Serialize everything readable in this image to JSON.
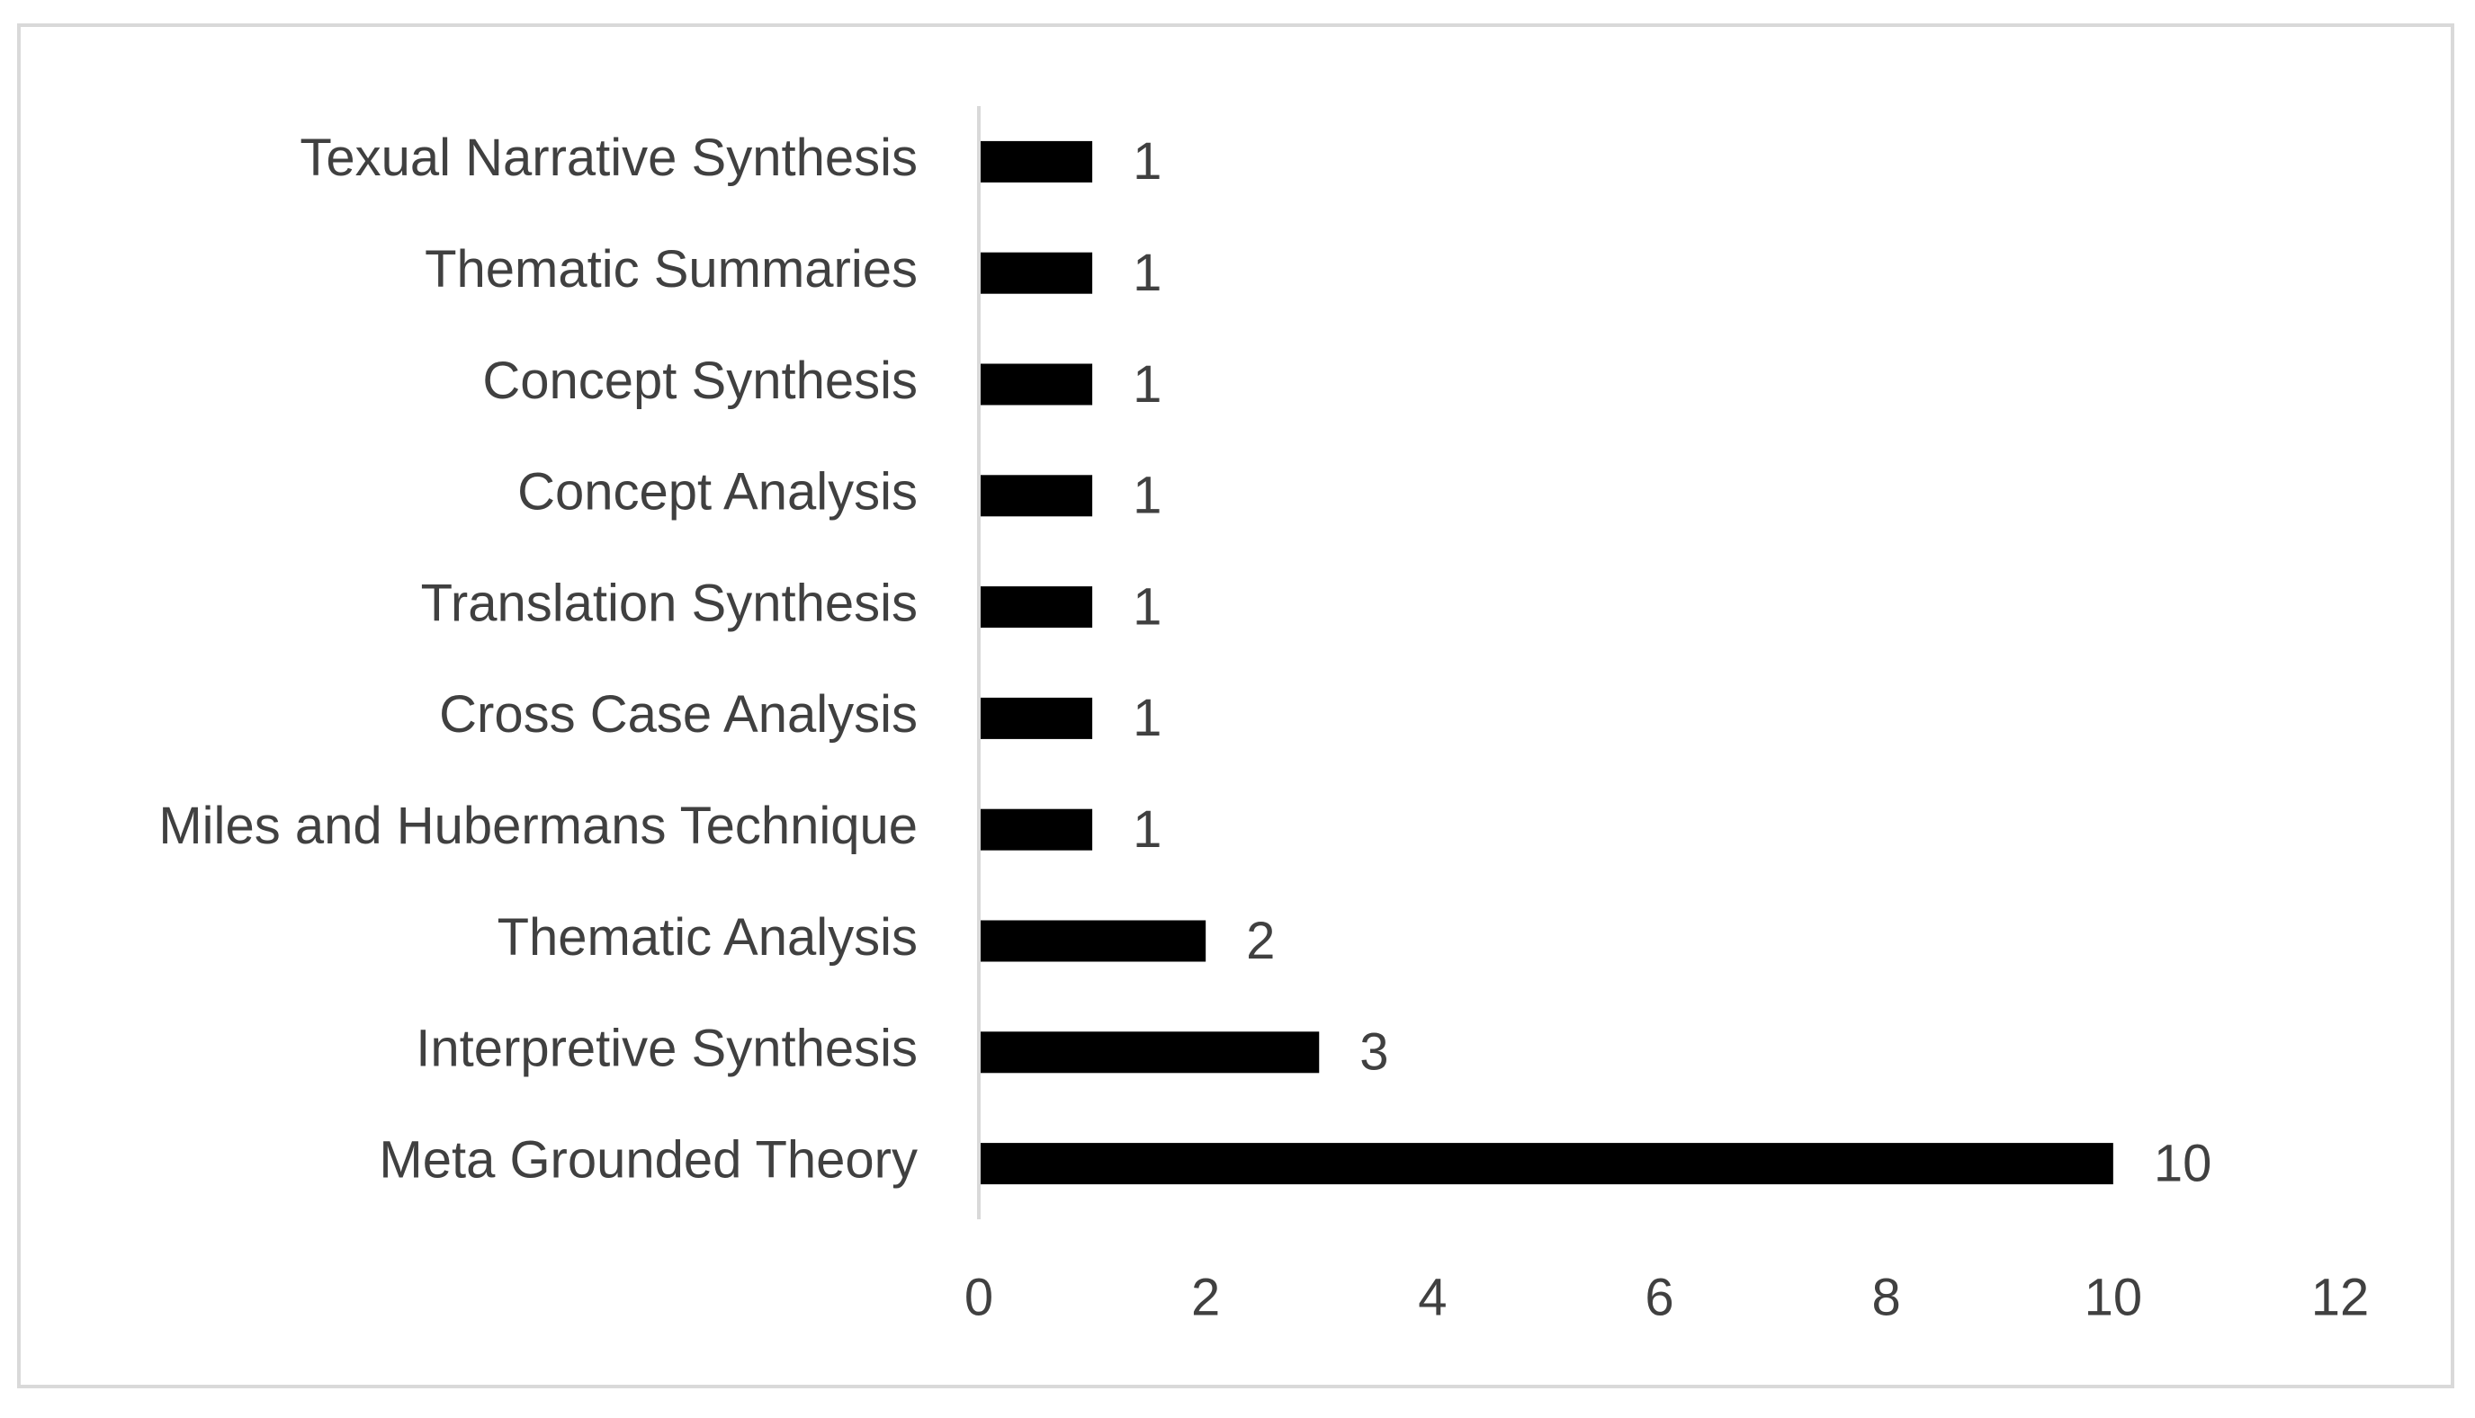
{
  "chart_data": {
    "type": "bar",
    "orientation": "horizontal",
    "categories": [
      "Texual Narrative Synthesis",
      "Thematic Summaries",
      "Concept Synthesis",
      "Concept Analysis",
      "Translation Synthesis",
      "Cross Case Analysis",
      "Miles and Hubermans Technique",
      "Thematic Analysis",
      "Interpretive Synthesis",
      "Meta Grounded Theory"
    ],
    "values": [
      1,
      1,
      1,
      1,
      1,
      1,
      1,
      2,
      3,
      10
    ],
    "color": "#000000",
    "xlim": [
      0,
      12
    ],
    "xticks": [
      0,
      2,
      4,
      6,
      8,
      10,
      12
    ],
    "grid": false
  }
}
